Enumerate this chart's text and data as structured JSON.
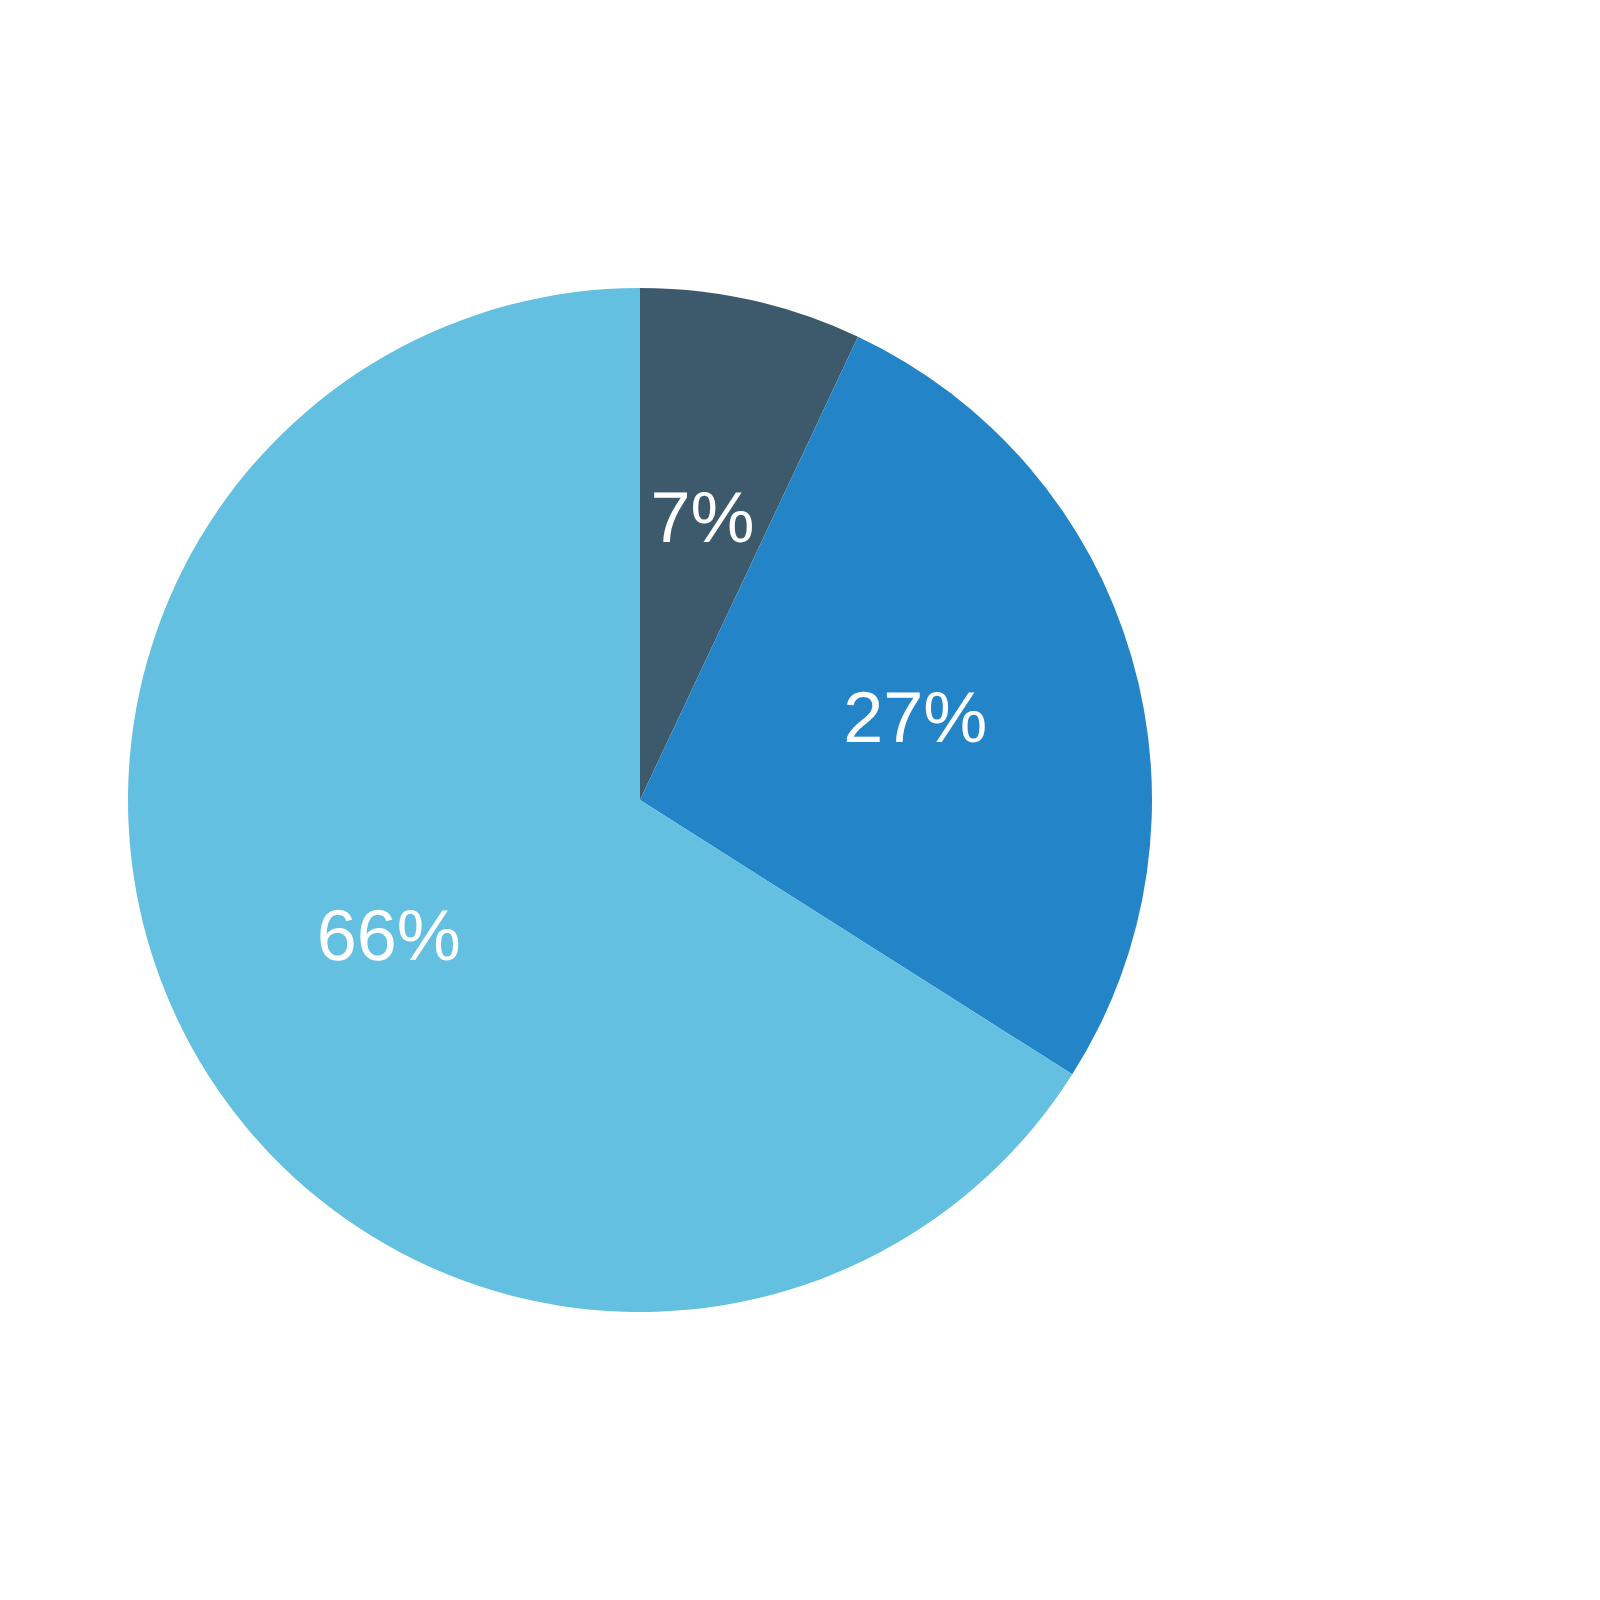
{
  "chart_data": {
    "type": "pie",
    "categories": [
      null,
      null,
      null
    ],
    "values": [
      7,
      27,
      66
    ],
    "colors": [
      "#3d5a6c",
      "#2385c8",
      "#63c0e0"
    ],
    "value_labels": [
      "7%",
      "27%",
      "66%"
    ]
  }
}
